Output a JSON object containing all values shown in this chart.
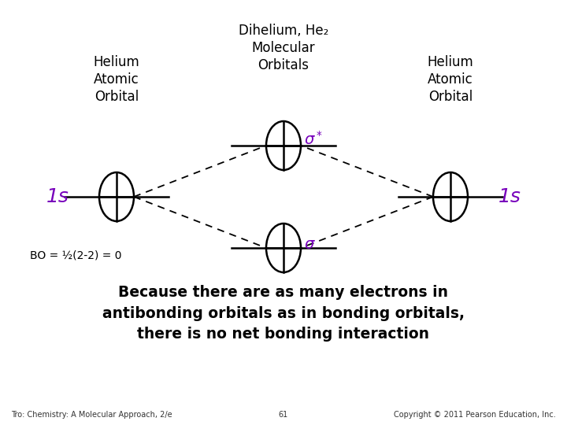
{
  "bg_color": "#ffffff",
  "title_center": "Dihelium, He₂\nMolecular\nOrbitals",
  "title_left": "Helium\nAtomic\nOrbital",
  "title_right": "Helium\nAtomic\nOrbital",
  "label_color": "#7700bb",
  "bo_text": "BO = ½(2-2) = 0",
  "bottom_text": "Because there are as many electrons in\nantibonding orbitals as in bonding orbitals,\nthere is no net bonding interaction",
  "footer_left": "Tro: Chemistry: A Molecular Approach, 2/e",
  "footer_center": "61",
  "footer_right": "Copyright © 2011 Pearson Education, Inc."
}
